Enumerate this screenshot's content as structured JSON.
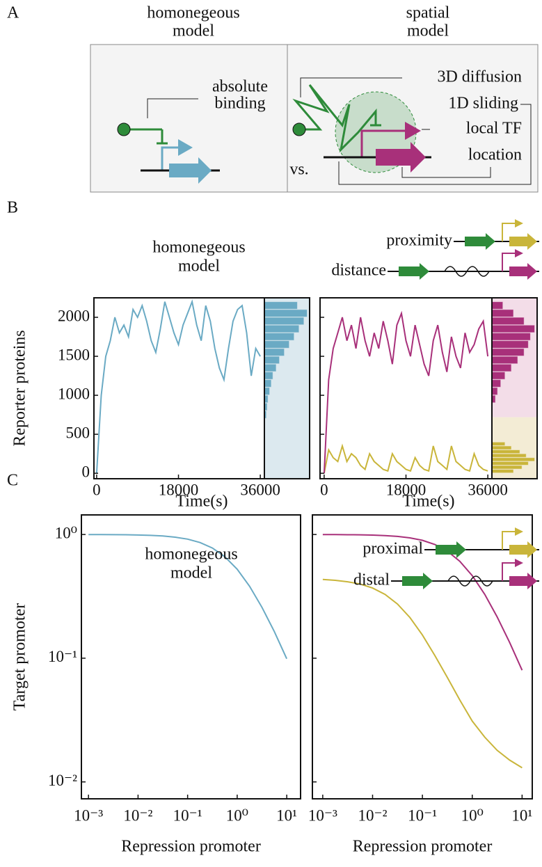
{
  "panel_labels": [
    "A",
    "B",
    "C"
  ],
  "diagram": {
    "titles": [
      [
        "homonegeous",
        "model"
      ],
      [
        "spatial",
        "model"
      ]
    ],
    "absolute": [
      "absolute",
      "binding"
    ],
    "labels": [
      "3D diffusion",
      "1D sliding",
      "local TF",
      "location"
    ],
    "vs": "vs."
  },
  "chart_data": [
    {
      "type": "line",
      "title": [
        "homonegeous",
        "model"
      ],
      "x_label": "Time(s)",
      "y_label": "Reporter proteins",
      "x": [
        0,
        1000,
        2000,
        3000,
        4000,
        5000,
        6000,
        7000,
        8000,
        9000,
        10000,
        11000,
        12000,
        13000,
        14000,
        15000,
        16000,
        17000,
        18000,
        19000,
        20000,
        21000,
        22000,
        23000,
        24000,
        25000,
        26000,
        27000,
        28000,
        29000,
        30000,
        31000,
        32000,
        33000,
        34000,
        35000,
        36000
      ],
      "values": [
        0,
        1000,
        1500,
        1700,
        2000,
        1800,
        1900,
        1750,
        2100,
        2000,
        2150,
        1950,
        1700,
        1550,
        1850,
        2200,
        2000,
        1800,
        1650,
        1900,
        2050,
        2200,
        1900,
        1700,
        2150,
        1950,
        1600,
        1350,
        1200,
        1600,
        1950,
        2100,
        2150,
        1800,
        1250,
        1600,
        1500
      ],
      "color": "#6aaac4",
      "hist_bins": [
        700,
        800,
        900,
        1000,
        1100,
        1200,
        1300,
        1400,
        1500,
        1600,
        1700,
        1800,
        1900,
        2000,
        2100,
        2200
      ],
      "hist_counts": [
        2,
        3,
        4,
        6,
        8,
        10,
        14,
        18,
        24,
        30,
        36,
        42,
        48,
        52,
        40
      ],
      "xlim": [
        -600,
        36900
      ],
      "ylim": [
        -70,
        2250
      ],
      "xticks": [
        0,
        18000,
        36000
      ],
      "yticks": [
        0,
        500,
        1000,
        1500,
        2000
      ]
    },
    {
      "type": "line",
      "x_label": "Time(s)",
      "x": [
        0,
        1000,
        2000,
        3000,
        4000,
        5000,
        6000,
        7000,
        8000,
        9000,
        10000,
        11000,
        12000,
        13000,
        14000,
        15000,
        16000,
        17000,
        18000,
        19000,
        20000,
        21000,
        22000,
        23000,
        24000,
        25000,
        26000,
        27000,
        28000,
        29000,
        30000,
        31000,
        32000,
        33000,
        34000,
        35000,
        36000
      ],
      "series": [
        {
          "name": "proximity",
          "color": "#c9b53a",
          "values": [
            0,
            300,
            200,
            150,
            350,
            150,
            250,
            200,
            100,
            50,
            250,
            150,
            100,
            50,
            30,
            250,
            150,
            100,
            50,
            30,
            200,
            100,
            50,
            30,
            350,
            150,
            100,
            50,
            350,
            150,
            100,
            50,
            30,
            250,
            100,
            50,
            30
          ],
          "hist_bins": [
            0,
            50,
            100,
            150,
            200,
            250,
            300,
            350,
            400
          ],
          "hist_counts": [
            20,
            28,
            34,
            40,
            32,
            26,
            18,
            12
          ]
        },
        {
          "name": "distance",
          "color": "#a8307a",
          "values": [
            0,
            1200,
            1600,
            1800,
            2000,
            1700,
            1900,
            1600,
            2000,
            1700,
            1500,
            1800,
            1600,
            1950,
            1700,
            1400,
            1900,
            2050,
            1700,
            1500,
            1900,
            1650,
            1400,
            1250,
            1700,
            1900,
            1550,
            1300,
            1750,
            1500,
            1350,
            1800,
            1550,
            1650,
            1850,
            1950,
            1500
          ],
          "hist_bins": [
            900,
            1000,
            1100,
            1200,
            1300,
            1400,
            1500,
            1600,
            1700,
            1800,
            1900,
            2000,
            2100,
            2200
          ],
          "hist_counts": [
            3,
            5,
            8,
            12,
            18,
            24,
            30,
            34,
            36,
            40,
            30,
            20,
            10
          ]
        }
      ],
      "xlim": [
        -900,
        36900
      ],
      "ylim": [
        -70,
        2250
      ],
      "xticks": [
        0,
        18000,
        36000
      ],
      "yticks": [
        0,
        500,
        1000,
        1500,
        2000
      ]
    },
    {
      "type": "line",
      "title": [
        "homonegeous",
        "model"
      ],
      "x_label": "Repression promoter",
      "y_label": "Target promoter",
      "xscale": "log",
      "yscale": "log",
      "x": [
        0.001,
        0.00178,
        0.00316,
        0.00562,
        0.01,
        0.0178,
        0.0316,
        0.0562,
        0.1,
        0.178,
        0.316,
        0.562,
        1,
        1.78,
        3.16,
        5.62,
        10
      ],
      "values": [
        0.999,
        0.998,
        0.997,
        0.995,
        0.991,
        0.984,
        0.972,
        0.951,
        0.917,
        0.861,
        0.777,
        0.662,
        0.524,
        0.382,
        0.258,
        0.164,
        0.099
      ],
      "color": "#6aaac4",
      "xlim": [
        0.00072,
        19
      ],
      "ylim": [
        0.0073,
        1.44
      ],
      "xticks": [
        {
          "value": 0.001,
          "label": "10⁻³"
        },
        {
          "value": 0.01,
          "label": "10⁻²"
        },
        {
          "value": 0.1,
          "label": "10⁻¹"
        },
        {
          "value": 1,
          "label": "10⁰"
        },
        {
          "value": 10,
          "label": "10¹"
        }
      ],
      "yticks": [
        {
          "value": 0.01,
          "label": "10⁻²"
        },
        {
          "value": 0.1,
          "label": "10⁻¹"
        },
        {
          "value": 1,
          "label": "10⁰"
        }
      ]
    },
    {
      "type": "line",
      "x_label": "Repression promoter",
      "xscale": "log",
      "yscale": "log",
      "x": [
        0.001,
        0.00178,
        0.00316,
        0.00562,
        0.01,
        0.0178,
        0.0316,
        0.0562,
        0.1,
        0.178,
        0.316,
        0.562,
        1,
        1.78,
        3.16,
        5.62,
        10
      ],
      "series": [
        {
          "name": "proximal",
          "color": "#c9b53a",
          "values": [
            0.433,
            0.426,
            0.415,
            0.398,
            0.369,
            0.328,
            0.274,
            0.213,
            0.154,
            0.105,
            0.07,
            0.046,
            0.031,
            0.023,
            0.018,
            0.015,
            0.013
          ]
        },
        {
          "name": "distal",
          "color": "#a8307a",
          "values": [
            0.999,
            0.998,
            0.996,
            0.994,
            0.989,
            0.98,
            0.965,
            0.939,
            0.897,
            0.83,
            0.734,
            0.608,
            0.465,
            0.328,
            0.216,
            0.134,
            0.08
          ]
        }
      ],
      "xlim": [
        0.00062,
        16
      ],
      "ylim": [
        0.0073,
        1.44
      ],
      "xticks": [
        {
          "value": 0.001,
          "label": "10⁻³"
        },
        {
          "value": 0.01,
          "label": "10⁻²"
        },
        {
          "value": 0.1,
          "label": "10⁻¹"
        },
        {
          "value": 1,
          "label": "10⁰"
        },
        {
          "value": 10,
          "label": "10¹"
        }
      ],
      "yticks": [
        0.01,
        0.1,
        1
      ]
    }
  ]
}
